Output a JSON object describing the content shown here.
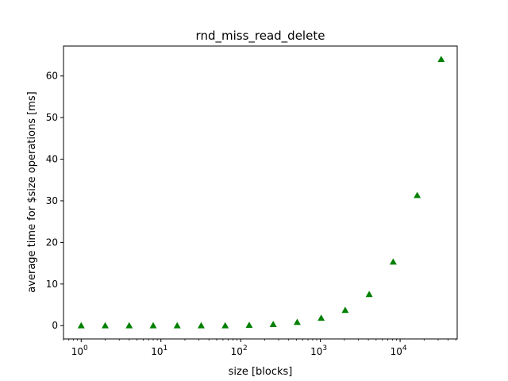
{
  "chart_data": {
    "type": "scatter",
    "title": "rnd_miss_read_delete",
    "xlabel": "size [blocks]",
    "ylabel": "average time for $size operations [ms]",
    "xscale": "log",
    "xlim": [
      0.6,
      52000
    ],
    "ylim": [
      -3.2,
      67.2
    ],
    "xticks": [
      {
        "value": 1,
        "base": "10",
        "exp": "0"
      },
      {
        "value": 10,
        "base": "10",
        "exp": "1"
      },
      {
        "value": 100,
        "base": "10",
        "exp": "2"
      },
      {
        "value": 1000,
        "base": "10",
        "exp": "3"
      },
      {
        "value": 10000,
        "base": "10",
        "exp": "4"
      }
    ],
    "yticks": [
      {
        "value": 0,
        "label": "0"
      },
      {
        "value": 10,
        "label": "10"
      },
      {
        "value": 20,
        "label": "20"
      },
      {
        "value": 30,
        "label": "30"
      },
      {
        "value": 40,
        "label": "40"
      },
      {
        "value": 50,
        "label": "50"
      },
      {
        "value": 60,
        "label": "60"
      }
    ],
    "grid": false,
    "marker": "triangle-up",
    "marker_color": "#008000",
    "points": [
      {
        "x": 1,
        "y": 0.0
      },
      {
        "x": 2,
        "y": 0.0
      },
      {
        "x": 4,
        "y": 0.0
      },
      {
        "x": 8,
        "y": 0.0
      },
      {
        "x": 16,
        "y": 0.0
      },
      {
        "x": 32,
        "y": 0.0
      },
      {
        "x": 64,
        "y": 0.0
      },
      {
        "x": 128,
        "y": 0.1
      },
      {
        "x": 256,
        "y": 0.3
      },
      {
        "x": 512,
        "y": 0.8
      },
      {
        "x": 1024,
        "y": 1.8
      },
      {
        "x": 2048,
        "y": 3.7
      },
      {
        "x": 4096,
        "y": 7.5
      },
      {
        "x": 8192,
        "y": 15.3
      },
      {
        "x": 16384,
        "y": 31.3
      },
      {
        "x": 32768,
        "y": 64.0
      }
    ]
  }
}
